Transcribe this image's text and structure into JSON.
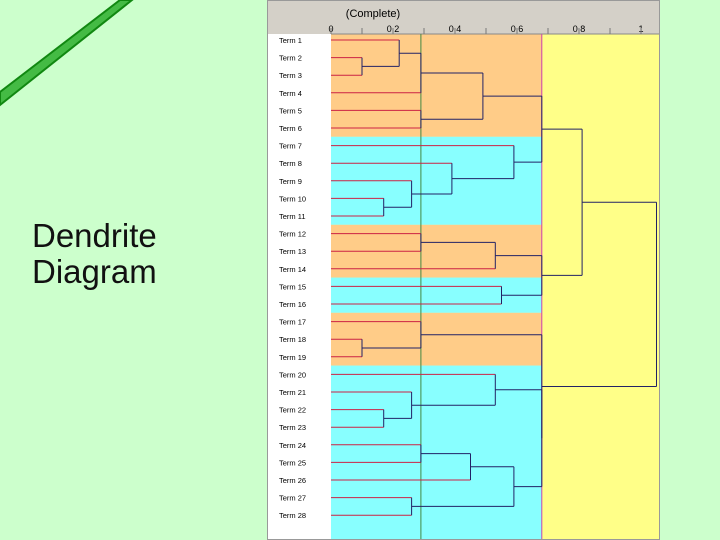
{
  "slide": {
    "title": "Dendrite\nDiagram"
  },
  "diagram": {
    "method_label": "(Complete)",
    "axis": {
      "ticks": [
        {
          "value": 0,
          "label": "0"
        },
        {
          "value": 0.2,
          "label": "0.2"
        },
        {
          "value": 0.4,
          "label": "0.4"
        },
        {
          "value": 0.6,
          "label": "0.6"
        },
        {
          "value": 0.8,
          "label": "0.8"
        },
        {
          "value": 1.0,
          "label": "1"
        }
      ],
      "range": [
        0,
        1.0
      ]
    },
    "thresholds": [
      0.29,
      0.68
    ],
    "band_colors": {
      "cluster_a": "#ffcc88",
      "cluster_b": "#88ffff",
      "outer": "#ffff88",
      "header": "#d4d0c8",
      "threshold_line_low": "#448844",
      "threshold_line_high": "#cc44aa",
      "branch": "#222266",
      "leaf_line": "#cc2244"
    },
    "clusters": [
      {
        "color": "cluster_a",
        "terms": [
          "Term 1",
          "Term 2",
          "Term 3",
          "Term 4",
          "Term 5",
          "Term 6"
        ]
      },
      {
        "color": "cluster_b",
        "terms": [
          "Term 7",
          "Term 8",
          "Term 9",
          "Term 10",
          "Term 11"
        ]
      },
      {
        "color": "cluster_a",
        "terms": [
          "Term 12",
          "Term 13",
          "Term 14"
        ]
      },
      {
        "color": "cluster_b",
        "terms": [
          "Term 15",
          "Term 16"
        ]
      },
      {
        "color": "cluster_a",
        "terms": [
          "Term 17",
          "Term 18",
          "Term 19"
        ]
      },
      {
        "color": "cluster_b",
        "terms": [
          "Term 20",
          "Term 21",
          "Term 22",
          "Term 23",
          "Term 24",
          "Term 25",
          "Term 26",
          "Term 27",
          "Term 28"
        ]
      }
    ],
    "terms": [
      "Term 1",
      "Term 2",
      "Term 3",
      "Term 4",
      "Term 5",
      "Term 6",
      "Term 7",
      "Term 8",
      "Term 9",
      "Term 10",
      "Term 11",
      "Term 12",
      "Term 13",
      "Term 14",
      "Term 15",
      "Term 16",
      "Term 17",
      "Term 18",
      "Term 19",
      "Term 20",
      "Term 21",
      "Term 22",
      "Term 23",
      "Term 24",
      "Term 25",
      "Term 26",
      "Term 27",
      "Term 28"
    ],
    "merges": [
      {
        "a": "Term 2",
        "b": "Term 3",
        "height": 0.1
      },
      {
        "a": "Term 1",
        "b": "M0",
        "height": 0.22
      },
      {
        "a": "M1",
        "b": "Term 4",
        "height": 0.29
      },
      {
        "a": "Term 5",
        "b": "Term 6",
        "height": 0.29
      },
      {
        "a": "M2",
        "b": "M3",
        "height": 0.49
      },
      {
        "a": "Term 10",
        "b": "Term 11",
        "height": 0.17
      },
      {
        "a": "Term 9",
        "b": "M5",
        "height": 0.26
      },
      {
        "a": "Term 8",
        "b": "M6",
        "height": 0.39
      },
      {
        "a": "Term 7",
        "b": "M7",
        "height": 0.59
      },
      {
        "a": "Term 12",
        "b": "Term 13",
        "height": 0.29
      },
      {
        "a": "M9",
        "b": "Term 14",
        "height": 0.53
      },
      {
        "a": "Term 15",
        "b": "Term 16",
        "height": 0.55
      },
      {
        "a": "Term 18",
        "b": "Term 19",
        "height": 0.1
      },
      {
        "a": "Term 17",
        "b": "M12",
        "height": 0.29
      },
      {
        "a": "Term 22",
        "b": "Term 23",
        "height": 0.17
      },
      {
        "a": "Term 21",
        "b": "M14",
        "height": 0.26
      },
      {
        "a": "Term 20",
        "b": "M15",
        "height": 0.53
      },
      {
        "a": "Term 24",
        "b": "Term 25",
        "height": 0.29
      },
      {
        "a": "M17",
        "b": "Term 26",
        "height": 0.45
      },
      {
        "a": "Term 27",
        "b": "Term 28",
        "height": 0.26
      },
      {
        "a": "M18",
        "b": "M19",
        "height": 0.59
      },
      {
        "a": "M16",
        "b": "M20",
        "height": 0.68
      },
      {
        "a": "M4",
        "b": "M8",
        "height": 0.68
      },
      {
        "a": "M21",
        "b": "M13",
        "height": 0.68
      },
      {
        "a": "M10",
        "b": "M11",
        "height": 0.68
      },
      {
        "a": "M22",
        "b": "M24",
        "height": 0.81
      },
      {
        "a": "M23",
        "b": "M25",
        "height": 1.05
      }
    ]
  }
}
